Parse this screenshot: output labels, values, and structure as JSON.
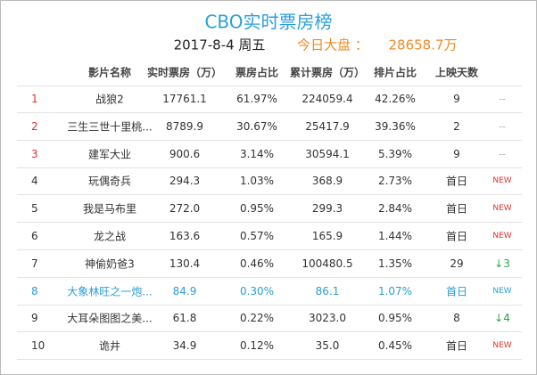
{
  "header": {
    "title": "CBO实时票房榜",
    "date": "2017-8-4 周五",
    "total_label": "今日大盘 ：",
    "total_value": "28658.7万"
  },
  "table": {
    "columns": [
      "",
      "影片名称",
      "实时票房（万）",
      "票房占比",
      "累计票房（万）",
      "排片占比",
      "上映天数",
      ""
    ],
    "rows": [
      [
        "1",
        "战狼2",
        "17761.1",
        "61.97%",
        "224059.4",
        "42.26%",
        "9",
        "--"
      ],
      [
        "2",
        "三生三世十里桃...",
        "8789.9",
        "30.67%",
        "25417.9",
        "39.36%",
        "2",
        "--"
      ],
      [
        "3",
        "建军大业",
        "900.6",
        "3.14%",
        "30594.1",
        "5.39%",
        "9",
        "--"
      ],
      [
        "4",
        "玩偶奇兵",
        "294.3",
        "1.03%",
        "368.9",
        "2.73%",
        "首日",
        "NEW"
      ],
      [
        "5",
        "我是马布里",
        "272.0",
        "0.95%",
        "299.3",
        "2.84%",
        "首日",
        "NEW"
      ],
      [
        "6",
        "龙之战",
        "163.6",
        "0.57%",
        "165.9",
        "1.44%",
        "首日",
        "NEW"
      ],
      [
        "7",
        "神偷奶爸3",
        "130.4",
        "0.46%",
        "100480.5",
        "1.35%",
        "29",
        "↓3"
      ],
      [
        "8",
        "大象林旺之一炮...",
        "84.9",
        "0.30%",
        "86.1",
        "1.07%",
        "首日",
        "NEW"
      ],
      [
        "9",
        "大耳朵图图之美...",
        "61.8",
        "0.22%",
        "3023.0",
        "0.95%",
        "8",
        "↓4"
      ],
      [
        "10",
        "诡井",
        "34.9",
        "0.12%",
        "35.0",
        "0.45%",
        "首日",
        "NEW"
      ]
    ]
  }
}
